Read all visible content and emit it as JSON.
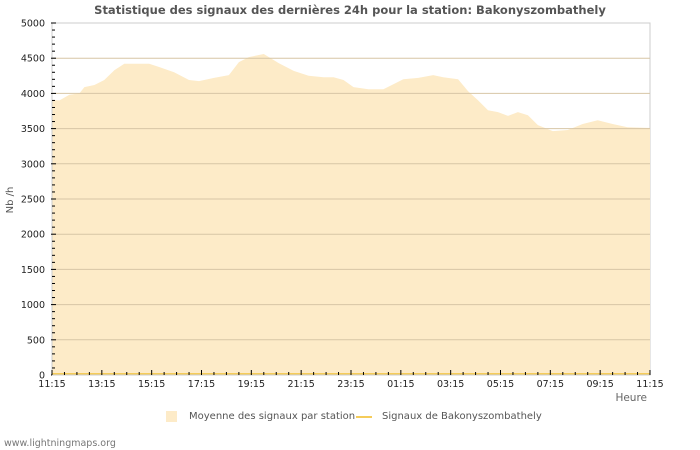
{
  "title": "Statistique des signaux des dernières 24h pour la station: Bakonyszombathely",
  "axes": {
    "y_label": "Nb /h",
    "x_label": "Heure",
    "y_ticks": [
      "0",
      "500",
      "1000",
      "1500",
      "2000",
      "2500",
      "3000",
      "3500",
      "4000",
      "4500",
      "5000"
    ],
    "x_ticks": [
      "11:15",
      "13:15",
      "15:15",
      "17:15",
      "19:15",
      "21:15",
      "23:15",
      "01:15",
      "03:15",
      "05:15",
      "07:15",
      "09:15",
      "11:15"
    ]
  },
  "legend": {
    "area_label": "Moyenne des signaux par station",
    "line_label": "Signaux de Bakonyszombathely"
  },
  "footer": "www.lightningmaps.org",
  "colors": {
    "area_fill": "#fdebc8",
    "line": "#f5cc5a",
    "grid": "#cccccc",
    "grid_inner": "#d8c5a0"
  },
  "chart_data": {
    "type": "area",
    "title": "Statistique des signaux des dernières 24h pour la station: Bakonyszombathely",
    "xlabel": "Heure",
    "ylabel": "Nb /h",
    "ylim": [
      0,
      5000
    ],
    "grid": true,
    "legend_position": "bottom",
    "x_tick_labels": [
      "11:15",
      "13:15",
      "15:15",
      "17:15",
      "19:15",
      "21:15",
      "23:15",
      "01:15",
      "03:15",
      "05:15",
      "07:15",
      "09:15",
      "11:15"
    ],
    "series": [
      {
        "name": "Moyenne des signaux par station",
        "type": "area",
        "x_hours": [
          0,
          0.3,
          0.7,
          1.1,
          1.3,
          1.7,
          2.1,
          2.5,
          2.9,
          3.5,
          3.9,
          4.3,
          4.9,
          5.5,
          5.9,
          6.5,
          7.1,
          7.5,
          7.9,
          8.5,
          9.1,
          9.7,
          10.3,
          10.9,
          11.3,
          11.7,
          12.1,
          12.7,
          13.3,
          13.7,
          14.1,
          14.7,
          15.3,
          15.7,
          16.3,
          16.7,
          17.1,
          17.5,
          17.9,
          18.3,
          18.7,
          19.1,
          19.5,
          20.1,
          20.7,
          21.3,
          21.9,
          22.5,
          23.1,
          23.9
        ],
        "values": [
          3906,
          3900,
          3980,
          4000,
          4090,
          4120,
          4190,
          4330,
          4420,
          4420,
          4420,
          4375,
          4300,
          4190,
          4175,
          4220,
          4260,
          4445,
          4515,
          4560,
          4430,
          4320,
          4250,
          4230,
          4230,
          4190,
          4090,
          4060,
          4060,
          4130,
          4200,
          4220,
          4260,
          4230,
          4200,
          4030,
          3900,
          3760,
          3735,
          3680,
          3735,
          3690,
          3550,
          3465,
          3480,
          3565,
          3620,
          3565,
          3520,
          3510
        ]
      },
      {
        "name": "Signaux de Bakonyszombathely",
        "type": "line",
        "x_hours": [
          0,
          24
        ],
        "values": [
          0,
          0
        ]
      }
    ]
  }
}
